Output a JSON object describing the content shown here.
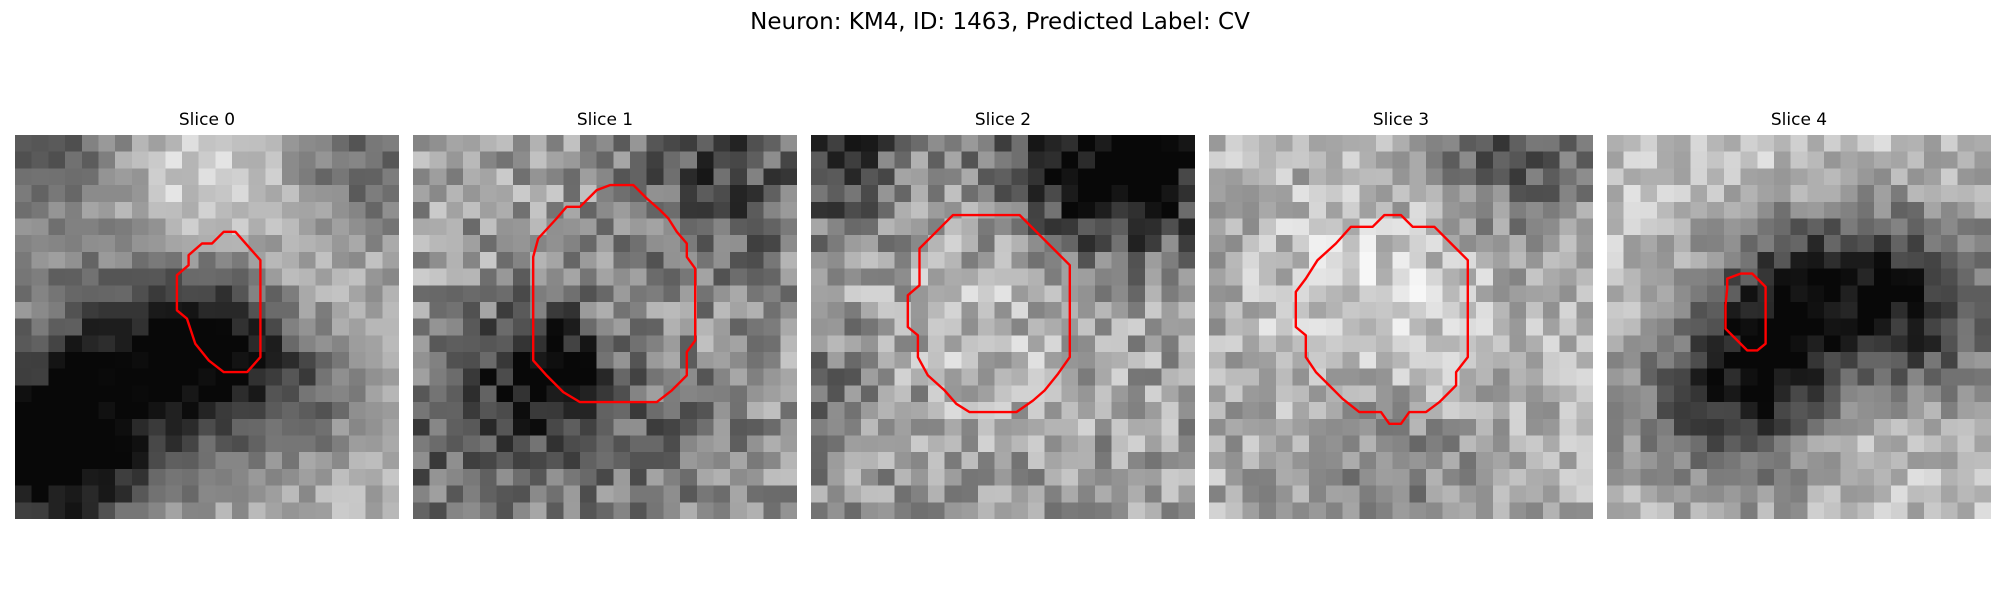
{
  "figure": {
    "title": "Neuron: KM4, ID: 1463, Predicted Label: CV",
    "outline_color": "#ff0000",
    "colormap": "gray"
  },
  "panels": [
    {
      "title": "Slice 0",
      "seed": 11,
      "blobs": [
        {
          "cx": 2,
          "cy": 0,
          "r": 4,
          "v": -0.35
        },
        {
          "cx": 19,
          "cy": 1,
          "r": 5,
          "v": -0.4
        },
        {
          "cx": 14,
          "cy": 1,
          "r": 4,
          "v": 0.25
        },
        {
          "cx": 8,
          "cy": 4,
          "r": 4,
          "v": 0.15
        },
        {
          "cx": 7,
          "cy": 13,
          "r": 5,
          "v": -0.55
        },
        {
          "cx": 11,
          "cy": 12,
          "r": 3,
          "v": -0.3
        },
        {
          "cx": 16,
          "cy": 14,
          "r": 4,
          "v": -0.3
        },
        {
          "cx": 1,
          "cy": 19,
          "r": 4,
          "v": -0.7
        },
        {
          "cx": 18,
          "cy": 8,
          "r": 3,
          "v": 0.2
        }
      ],
      "base": 0.72,
      "noise": 0.12,
      "outline": [
        [
          10.4,
          7.2
        ],
        [
          11.2,
          6.5
        ],
        [
          11.8,
          6.5
        ],
        [
          12.5,
          5.8
        ],
        [
          13.2,
          5.8
        ],
        [
          14.0,
          6.7
        ],
        [
          14.7,
          7.5
        ],
        [
          14.7,
          13.3
        ],
        [
          13.9,
          14.2
        ],
        [
          12.5,
          14.2
        ],
        [
          11.6,
          13.5
        ],
        [
          10.8,
          12.5
        ],
        [
          10.3,
          11.0
        ],
        [
          9.7,
          10.5
        ],
        [
          9.7,
          8.4
        ],
        [
          10.4,
          7.8
        ]
      ]
    },
    {
      "title": "Slice 1",
      "seed": 23,
      "blobs": [
        {
          "cx": 18,
          "cy": 2,
          "r": 4,
          "v": -0.35
        },
        {
          "cx": 7,
          "cy": 13,
          "r": 3,
          "v": -0.35
        },
        {
          "cx": 8,
          "cy": 14,
          "r": 2,
          "v": -0.3
        },
        {
          "cx": 2,
          "cy": 18,
          "r": 4,
          "v": -0.25
        },
        {
          "cx": 14,
          "cy": 18,
          "r": 4,
          "v": -0.2
        }
      ],
      "base": 0.62,
      "noise": 0.2,
      "outline": [
        [
          7.5,
          6.2
        ],
        [
          8.6,
          5.0
        ],
        [
          9.2,
          4.3
        ],
        [
          10.0,
          4.3
        ],
        [
          11.0,
          3.3
        ],
        [
          11.8,
          3.0
        ],
        [
          13.2,
          3.0
        ],
        [
          14.0,
          3.8
        ],
        [
          14.8,
          4.5
        ],
        [
          15.3,
          5.0
        ],
        [
          15.8,
          5.8
        ],
        [
          16.4,
          6.5
        ],
        [
          16.4,
          7.3
        ],
        [
          16.9,
          8.0
        ],
        [
          16.9,
          12.3
        ],
        [
          16.4,
          13.0
        ],
        [
          16.4,
          14.4
        ],
        [
          15.5,
          15.3
        ],
        [
          14.6,
          16.0
        ],
        [
          12.5,
          16.0
        ],
        [
          10.0,
          16.0
        ],
        [
          9.0,
          15.4
        ],
        [
          8.0,
          14.4
        ],
        [
          7.2,
          13.5
        ],
        [
          7.2,
          11.5
        ],
        [
          7.2,
          9.0
        ],
        [
          7.2,
          7.3
        ]
      ]
    },
    {
      "title": "Slice 2",
      "seed": 37,
      "blobs": [
        {
          "cx": 1,
          "cy": 1,
          "r": 3,
          "v": -0.45
        },
        {
          "cx": 16,
          "cy": 1,
          "r": 4,
          "v": -0.5
        },
        {
          "cx": 20,
          "cy": 2,
          "r": 3,
          "v": -0.4
        },
        {
          "cx": 10,
          "cy": 10,
          "r": 5,
          "v": 0.12
        },
        {
          "cx": 0,
          "cy": 15,
          "r": 3,
          "v": -0.2
        }
      ],
      "base": 0.62,
      "noise": 0.2,
      "outline": [
        [
          6.5,
          6.8
        ],
        [
          7.5,
          5.8
        ],
        [
          8.5,
          4.8
        ],
        [
          10.0,
          4.8
        ],
        [
          12.5,
          4.8
        ],
        [
          13.5,
          5.8
        ],
        [
          14.5,
          6.8
        ],
        [
          15.5,
          7.8
        ],
        [
          15.5,
          10.0
        ],
        [
          15.5,
          13.3
        ],
        [
          14.8,
          14.3
        ],
        [
          14.0,
          15.3
        ],
        [
          13.3,
          15.9
        ],
        [
          12.3,
          16.6
        ],
        [
          11.0,
          16.6
        ],
        [
          9.5,
          16.6
        ],
        [
          8.7,
          16.1
        ],
        [
          8.0,
          15.3
        ],
        [
          7.0,
          14.4
        ],
        [
          6.4,
          13.3
        ],
        [
          6.4,
          12.0
        ],
        [
          5.8,
          11.5
        ],
        [
          5.8,
          9.6
        ],
        [
          6.5,
          9.0
        ]
      ]
    },
    {
      "title": "Slice 3",
      "seed": 51,
      "blobs": [
        {
          "cx": 18,
          "cy": 0,
          "r": 4,
          "v": -0.35
        },
        {
          "cx": 10,
          "cy": 10,
          "r": 5,
          "v": 0.18
        },
        {
          "cx": 10,
          "cy": 19,
          "r": 4,
          "v": -0.2
        }
      ],
      "base": 0.68,
      "noise": 0.17,
      "outline": [
        [
          5.8,
          8.6
        ],
        [
          6.5,
          7.5
        ],
        [
          7.6,
          6.5
        ],
        [
          8.5,
          5.5
        ],
        [
          9.8,
          5.5
        ],
        [
          10.5,
          4.8
        ],
        [
          11.5,
          4.8
        ],
        [
          12.2,
          5.5
        ],
        [
          13.5,
          5.5
        ],
        [
          14.5,
          6.5
        ],
        [
          15.5,
          7.5
        ],
        [
          15.5,
          10.0
        ],
        [
          15.5,
          13.3
        ],
        [
          14.8,
          14.2
        ],
        [
          14.8,
          15.0
        ],
        [
          13.8,
          16.0
        ],
        [
          13.0,
          16.6
        ],
        [
          12.0,
          16.6
        ],
        [
          11.5,
          17.3
        ],
        [
          10.8,
          17.3
        ],
        [
          10.3,
          16.6
        ],
        [
          9.0,
          16.6
        ],
        [
          8.0,
          15.8
        ],
        [
          7.2,
          15.0
        ],
        [
          6.4,
          14.2
        ],
        [
          5.8,
          13.3
        ],
        [
          5.8,
          12.0
        ],
        [
          5.2,
          11.5
        ],
        [
          5.2,
          9.4
        ]
      ]
    },
    {
      "title": "Slice 4",
      "seed": 67,
      "blobs": [
        {
          "cx": 10,
          "cy": 8,
          "r": 4,
          "v": -0.35
        },
        {
          "cx": 15,
          "cy": 9,
          "r": 4,
          "v": -0.35
        },
        {
          "cx": 19,
          "cy": 10,
          "r": 4,
          "v": -0.35
        },
        {
          "cx": 9,
          "cy": 13,
          "r": 3,
          "v": -0.45
        },
        {
          "cx": 8,
          "cy": 17,
          "r": 4,
          "v": -0.25
        },
        {
          "cx": 14,
          "cy": 16,
          "r": 3,
          "v": 0.15
        },
        {
          "cx": 3,
          "cy": 16,
          "r": 3,
          "v": -0.2
        },
        {
          "cx": 10,
          "cy": 2,
          "r": 5,
          "v": 0.12
        }
      ],
      "base": 0.74,
      "noise": 0.14,
      "outline": [
        [
          7.2,
          8.6
        ],
        [
          8.0,
          8.3
        ],
        [
          8.7,
          8.3
        ],
        [
          9.5,
          9.1
        ],
        [
          9.5,
          10.8
        ],
        [
          9.5,
          12.5
        ],
        [
          9.0,
          12.9
        ],
        [
          8.4,
          12.9
        ],
        [
          7.8,
          12.3
        ],
        [
          7.1,
          11.6
        ],
        [
          7.1,
          10.2
        ],
        [
          7.2,
          9.2
        ]
      ]
    }
  ]
}
